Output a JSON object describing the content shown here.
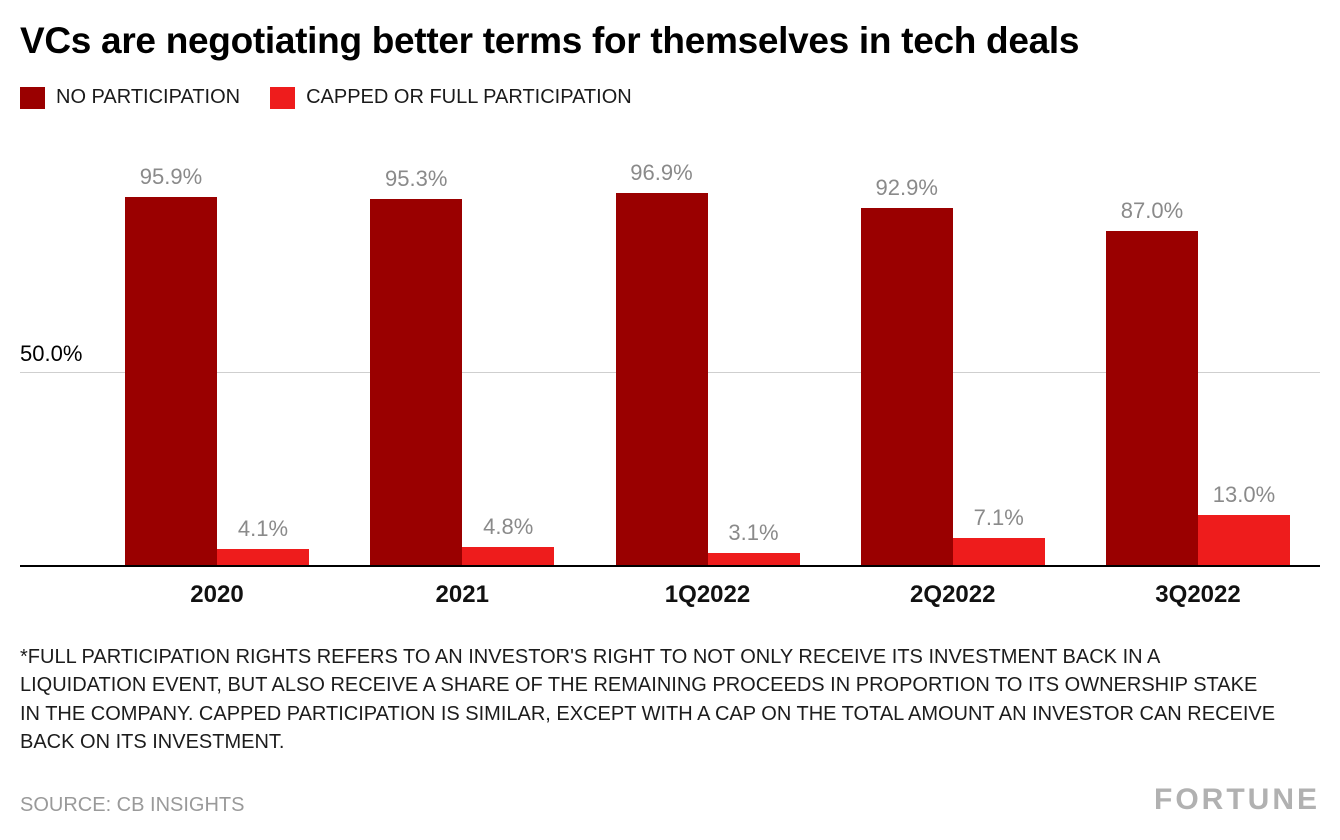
{
  "title": "VCs are negotiating better terms for themselves in tech deals",
  "legend": [
    {
      "label": "NO PARTICIPATION",
      "color": "#9a0000"
    },
    {
      "label": "CAPPED OR FULL PARTICIPATION",
      "color": "#ee1c1c"
    }
  ],
  "chart_data": {
    "type": "bar",
    "categories": [
      "2020",
      "2021",
      "1Q2022",
      "2Q2022",
      "3Q2022"
    ],
    "series": [
      {
        "name": "NO PARTICIPATION",
        "color": "#9a0000",
        "values": [
          95.9,
          95.3,
          96.9,
          92.9,
          87.0
        ],
        "labels": [
          "95.9%",
          "95.3%",
          "96.9%",
          "92.9%",
          "87.0%"
        ]
      },
      {
        "name": "CAPPED OR FULL PARTICIPATION",
        "color": "#ee1c1c",
        "values": [
          4.1,
          4.8,
          3.1,
          7.1,
          13.0
        ],
        "labels": [
          "4.1%",
          "4.8%",
          "3.1%",
          "7.1%",
          "13.0%"
        ]
      }
    ],
    "title": "VCs are negotiating better terms for themselves in tech deals",
    "xlabel": "",
    "ylabel": "",
    "ylim": [
      0,
      100
    ],
    "gridline": {
      "value": 50.0,
      "label": "50.0%"
    },
    "grid": "single-line-at-50",
    "legend_position": "top",
    "value_label_color": "#8a8a8a"
  },
  "footnote": "*FULL PARTICIPATION RIGHTS REFERS TO AN INVESTOR'S RIGHT TO NOT ONLY RECEIVE ITS INVESTMENT BACK IN A LIQUIDATION EVENT, BUT ALSO RECEIVE A SHARE OF THE REMAINING PROCEEDS IN PROPORTION TO ITS OWNERSHIP STAKE IN THE COMPANY. CAPPED PARTICIPATION IS SIMILAR, EXCEPT WITH A CAP ON THE TOTAL AMOUNT AN INVESTOR CAN RECEIVE BACK ON ITS INVESTMENT.",
  "source": "SOURCE: CB INSIGHTS",
  "brand": "FORTUNE"
}
